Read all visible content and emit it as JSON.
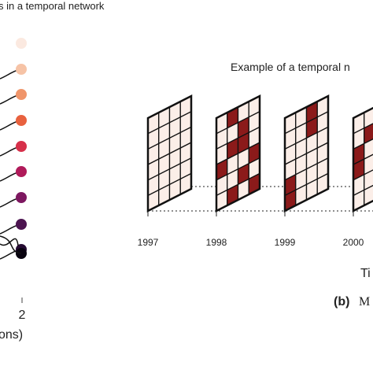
{
  "left_panel": {
    "title": "s in a temporal network",
    "x_tick": "2",
    "x_label": "ons)"
  },
  "right_panel": {
    "title": "Example of a temporal n",
    "years": [
      "1997",
      "1998",
      "1999",
      "2000"
    ],
    "x_label": "Ti",
    "caption_bold": "(b)",
    "caption": "M"
  }
}
